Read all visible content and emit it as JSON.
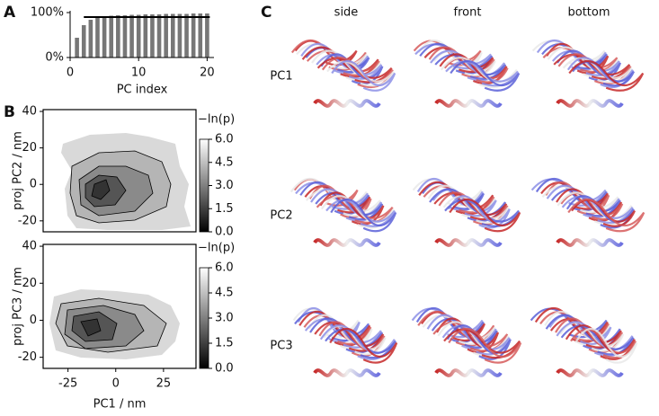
{
  "panel_labels": [
    "A",
    "B",
    "C"
  ],
  "structures": {
    "columns": [
      "side",
      "front",
      "bottom"
    ],
    "rows": [
      "PC1",
      "PC2",
      "PC3"
    ]
  },
  "chart_data": [
    {
      "type": "bar",
      "x_label": "PC index",
      "color": "#777777",
      "x": [
        1,
        2,
        3,
        4,
        5,
        6,
        7,
        8,
        9,
        10,
        11,
        12,
        13,
        14,
        15,
        16,
        17,
        18,
        19,
        20
      ],
      "values": [
        44,
        72,
        84,
        89,
        92,
        93,
        94,
        94,
        95,
        95,
        96,
        96,
        96,
        97,
        97,
        97,
        97,
        98,
        98,
        98
      ],
      "reference_line": 90,
      "xlim": [
        0,
        21
      ],
      "xticks": [
        0,
        10,
        20
      ],
      "ylim": [
        0,
        100
      ],
      "yticks": [
        {
          "value": 0,
          "label": "0%"
        },
        {
          "value": 100,
          "label": "100%"
        }
      ]
    },
    {
      "type": "contour",
      "y_label": "proj PC2 / nm",
      "xlim": [
        -38,
        42
      ],
      "ylim": [
        -26,
        41
      ],
      "yticks": [
        -20,
        0,
        20,
        40
      ],
      "colorbar": {
        "label": "−ln(p)",
        "lim": [
          0,
          6
        ],
        "ticks": [
          {
            "value": 0,
            "label": "0.0"
          },
          {
            "value": 1.5,
            "label": "1.5"
          },
          {
            "value": 3,
            "label": "3.0"
          },
          {
            "value": 4.5,
            "label": "4.5"
          },
          {
            "value": 6,
            "label": "6.0"
          }
        ]
      }
    },
    {
      "type": "contour",
      "y_label": "proj PC3 / nm",
      "x_label": "PC1 / nm",
      "xlim": [
        -38,
        42
      ],
      "xticks": [
        -25,
        0,
        25
      ],
      "ylim": [
        -26,
        41
      ],
      "yticks": [
        -20,
        0,
        20,
        40
      ],
      "colorbar": {
        "label": "−ln(p)",
        "lim": [
          0,
          6
        ],
        "ticks": [
          {
            "value": 0,
            "label": "0.0"
          },
          {
            "value": 1.5,
            "label": "1.5"
          },
          {
            "value": 3,
            "label": "3.0"
          },
          {
            "value": 4.5,
            "label": "4.5"
          },
          {
            "value": 6,
            "label": "6.0"
          }
        ]
      }
    }
  ]
}
